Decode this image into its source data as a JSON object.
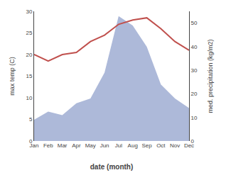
{
  "chart_data": {
    "type": "line",
    "xlabel": "date (month)",
    "ylabel": "max temp (C)",
    "y2label": "med. precipitation (kg/m2)",
    "categories": [
      "Jan",
      "Feb",
      "Mar",
      "Apr",
      "May",
      "Jun",
      "Jul",
      "Aug",
      "Sep",
      "Oct",
      "Nov",
      "Dec"
    ],
    "series": [
      {
        "type": "area",
        "axis": "y2",
        "color": "#adb9d9",
        "values": [
          9.0,
          12.5,
          11.0,
          16.0,
          18.0,
          29.0,
          53.0,
          49.0,
          40.0,
          24.0,
          18.0,
          14.0
        ]
      },
      {
        "type": "line",
        "color": "#c0504d",
        "values": [
          20.0,
          18.5,
          20.0,
          20.5,
          23.0,
          24.5,
          27.0,
          28.0,
          28.5,
          26.0,
          23.0,
          21.0
        ]
      }
    ],
    "ylim": [
      0,
      30
    ],
    "yticks": [
      0,
      5,
      10,
      15,
      20,
      25,
      30
    ],
    "y2lim": [
      0,
      55
    ],
    "y2ticks": [
      0,
      10,
      20,
      30,
      40,
      50
    ],
    "grid": false
  }
}
